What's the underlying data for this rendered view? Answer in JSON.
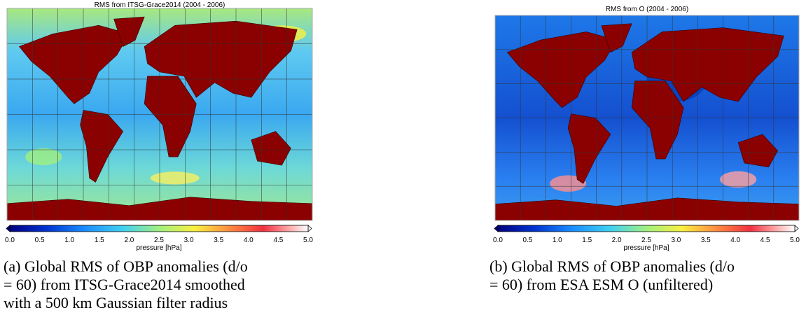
{
  "panels": [
    {
      "title": "RMS from ITSG-Grace2014 (2004 - 2006)",
      "colorbar": {
        "ticks": [
          "0.0",
          "0.5",
          "1.0",
          "1.5",
          "2.0",
          "2.5",
          "3.0",
          "3.5",
          "4.0",
          "4.5",
          "5.0"
        ],
        "label": "pressure [hPa]"
      },
      "caption": [
        "(a) Global RMS of OBP anomalies (d/o",
        "= 60) from ITSG-Grace2014 smoothed",
        "with a 500 km Gaussian filter radius"
      ]
    },
    {
      "title": "RMS from O (2004 - 2006)",
      "colorbar": {
        "ticks": [
          "0.0",
          "0.5",
          "1.0",
          "1.5",
          "2.0",
          "2.5",
          "3.0",
          "3.5",
          "4.0",
          "4.5",
          "5.0"
        ],
        "label": "pressure [hPa]"
      },
      "caption": [
        "(b) Global RMS of OBP anomalies (d/o",
        "= 60) from ESA ESM O (unfiltered)"
      ]
    }
  ]
}
